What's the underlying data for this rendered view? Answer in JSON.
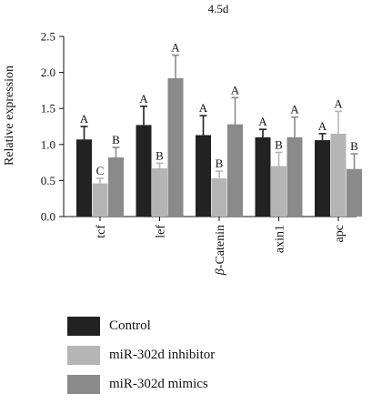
{
  "chart_data": {
    "type": "bar",
    "title": "4.5d",
    "ylabel": "Relative expression",
    "xlabel": "",
    "ylim": [
      0,
      2.5
    ],
    "yticks": [
      "0.0",
      "0.5",
      "1.0",
      "1.5",
      "2.0",
      "2.5"
    ],
    "categories": [
      "tcf",
      "lef",
      "β-Catenin",
      "axin1",
      "apc"
    ],
    "series": [
      {
        "name": "Control",
        "color": "#222222",
        "values": [
          1.07,
          1.27,
          1.13,
          1.1,
          1.06
        ],
        "errors": [
          0.18,
          0.26,
          0.27,
          0.11,
          0.09
        ],
        "letters": [
          "A",
          "A",
          "A",
          "A",
          "A"
        ]
      },
      {
        "name": "miR-302d inhibitor",
        "color": "#b5b5b5",
        "values": [
          0.46,
          0.67,
          0.53,
          0.7,
          1.15
        ],
        "errors": [
          0.07,
          0.07,
          0.1,
          0.19,
          0.31
        ],
        "letters": [
          "C",
          "B",
          "B",
          "B",
          "A"
        ]
      },
      {
        "name": "miR-302d mimics",
        "color": "#8a8a8a",
        "values": [
          0.82,
          1.92,
          1.28,
          1.1,
          0.66
        ],
        "errors": [
          0.14,
          0.32,
          0.37,
          0.28,
          0.21
        ],
        "letters": [
          "B",
          "A",
          "A",
          "A",
          "B"
        ]
      }
    ],
    "grid": false,
    "legend_position": "bottom-left"
  }
}
